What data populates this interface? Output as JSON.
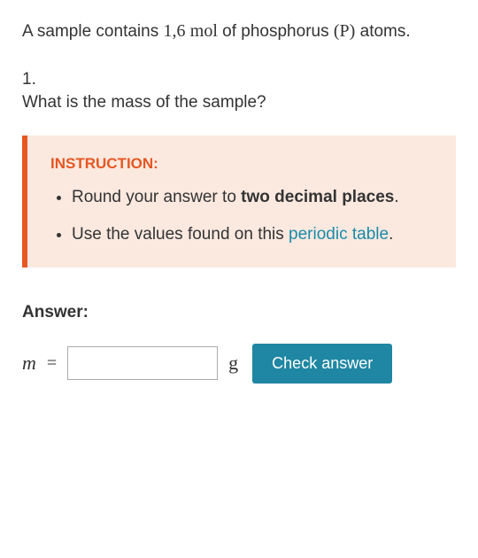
{
  "problem": {
    "text_before_value": "A sample contains ",
    "value": "1,6",
    "unit": "mol",
    "text_between": " of phosphorus ",
    "symbol_open": "(",
    "symbol": "P",
    "symbol_close": ")",
    "text_after": " atoms."
  },
  "question": {
    "number": "1.",
    "text": "What is the mass of the sample?"
  },
  "instruction": {
    "heading": "INSTRUCTION:",
    "items": [
      {
        "prefix": "Round your answer to ",
        "bold": "two decimal places",
        "suffix": "."
      },
      {
        "prefix": "Use the values found on this ",
        "link": "periodic table",
        "suffix": "."
      }
    ]
  },
  "answer": {
    "heading": "Answer:",
    "variable": "m",
    "equals": "=",
    "unit": "g",
    "button_label": "Check answer",
    "input_value": ""
  },
  "colors": {
    "instruction_bg": "#fbe9e0",
    "instruction_border": "#e65722",
    "instruction_heading": "#e65722",
    "link": "#1a8aa8",
    "button_bg": "#1f87a3",
    "button_text": "#ffffff",
    "body_text": "#333333"
  }
}
